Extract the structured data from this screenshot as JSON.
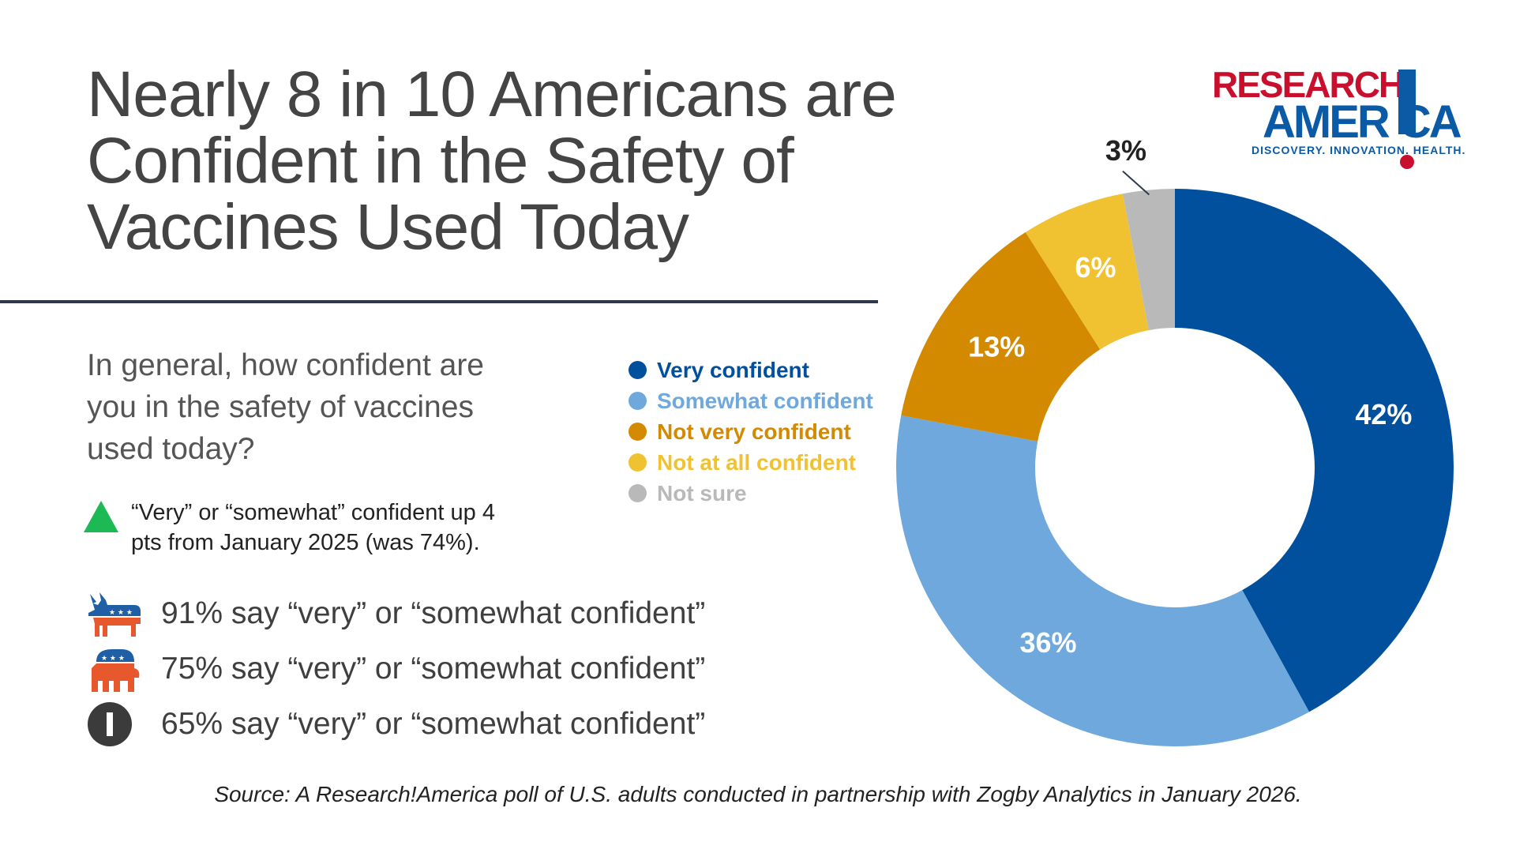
{
  "title_lines": [
    "Nearly 8 in 10 Americans are",
    "Confident in the Safety of",
    "Vaccines Used Today"
  ],
  "question_lines": [
    "In general, how confident are",
    "you in the safety of vaccines",
    "used today?"
  ],
  "change_note_lines": [
    "“Very” or “somewhat” confident up 4",
    "pts from January 2025 (was 74%)."
  ],
  "party_stats": [
    {
      "icon": "democrat-donkey-icon",
      "text": "91% say “very” or “somewhat confident”"
    },
    {
      "icon": "republican-elephant-icon",
      "text": "75% say “very” or “somewhat confident”"
    },
    {
      "icon": "independent-icon",
      "text": "65% say “very” or “somewhat confident”"
    }
  ],
  "logo": {
    "line1": "RESEARCH",
    "line2": "AMER CA",
    "tagline": "DISCOVERY. INNOVATION. HEALTH."
  },
  "source": "Source: A Research!America poll of U.S. adults conducted in partnership with Zogby Analytics in January 2026.",
  "colors": {
    "up_triangle": "#1db954",
    "democrat": "#1f5fa6",
    "republican": "#e8582d",
    "independent": "#3b3b3b"
  },
  "chart_data": {
    "type": "pie",
    "variant": "donut",
    "legend_position": "left",
    "categories": [
      "Very confident",
      "Somewhat confident",
      "Not very confident",
      "Not at all confident",
      "Not sure"
    ],
    "values": [
      42,
      36,
      13,
      6,
      3
    ],
    "labels": [
      "42%",
      "36%",
      "13%",
      "6%",
      "3%"
    ],
    "colors": [
      "#00509d",
      "#6fa8dc",
      "#d38a00",
      "#f0c232",
      "#b9b9b9"
    ]
  }
}
